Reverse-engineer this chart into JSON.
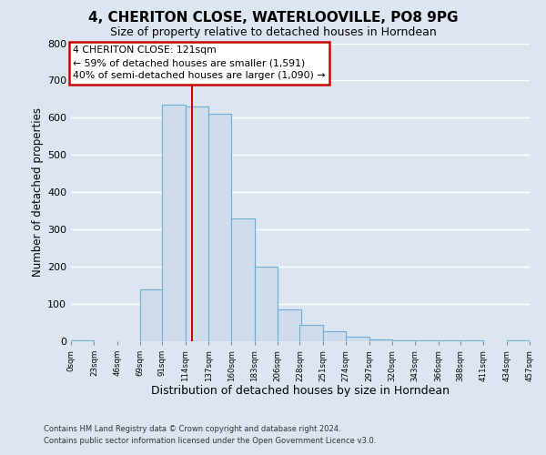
{
  "title": "4, CHERITON CLOSE, WATERLOOVILLE, PO8 9PG",
  "subtitle": "Size of property relative to detached houses in Horndean",
  "xlabel": "Distribution of detached houses by size in Horndean",
  "ylabel": "Number of detached properties",
  "bin_edges": [
    0,
    23,
    46,
    69,
    91,
    114,
    137,
    160,
    183,
    206,
    228,
    251,
    274,
    297,
    320,
    343,
    366,
    388,
    411,
    434,
    457
  ],
  "bin_labels": [
    "0sqm",
    "23sqm",
    "46sqm",
    "69sqm",
    "91sqm",
    "114sqm",
    "137sqm",
    "160sqm",
    "183sqm",
    "206sqm",
    "228sqm",
    "251sqm",
    "274sqm",
    "297sqm",
    "320sqm",
    "343sqm",
    "366sqm",
    "388sqm",
    "411sqm",
    "434sqm",
    "457sqm"
  ],
  "counts": [
    2,
    0,
    0,
    140,
    635,
    630,
    610,
    330,
    200,
    85,
    45,
    27,
    12,
    5,
    3,
    2,
    2,
    2,
    0,
    2
  ],
  "bar_facecolor": "#cfdcec",
  "bar_edgecolor": "#6aaed6",
  "vline_x": 121,
  "vline_color": "#cc0000",
  "annotation_line1": "4 CHERITON CLOSE: 121sqm",
  "annotation_line2": "← 59% of detached houses are smaller (1,591)",
  "annotation_line3": "40% of semi-detached houses are larger (1,090) →",
  "annotation_box_edgecolor": "#cc0000",
  "ylim_min": 0,
  "ylim_max": 800,
  "yticks": [
    0,
    100,
    200,
    300,
    400,
    500,
    600,
    700,
    800
  ],
  "background_color": "#dce6f0",
  "grid_color": "#ffffff",
  "footer_line1": "Contains HM Land Registry data © Crown copyright and database right 2024.",
  "footer_line2": "Contains public sector information licensed under the Open Government Licence v3.0."
}
